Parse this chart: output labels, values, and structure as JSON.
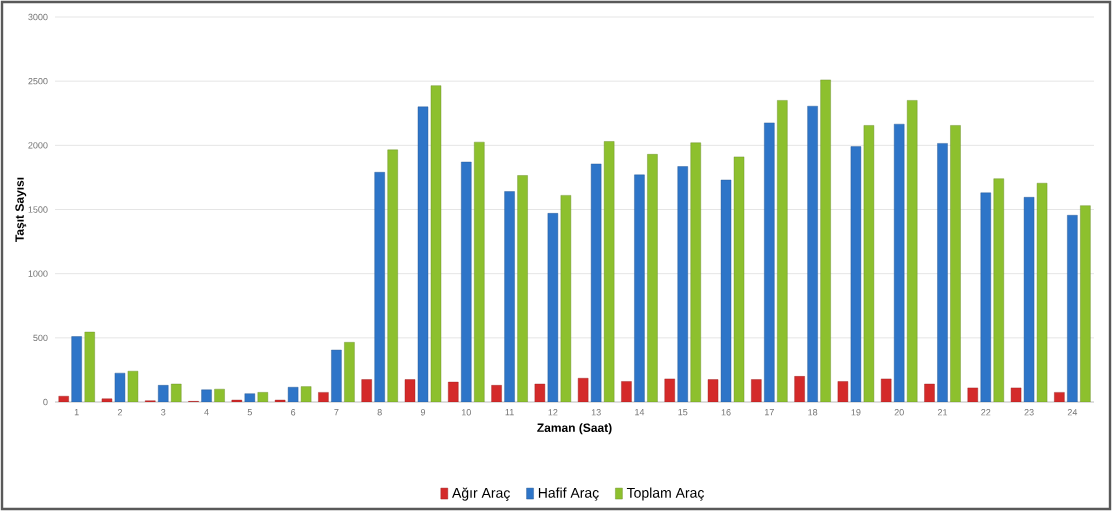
{
  "chart_data": {
    "type": "bar",
    "xlabel": "Zaman (Saat)",
    "ylabel": "Taşıt Sayısı",
    "categories": [
      "1",
      "2",
      "3",
      "4",
      "5",
      "6",
      "7",
      "8",
      "9",
      "10",
      "11",
      "12",
      "13",
      "14",
      "15",
      "16",
      "17",
      "18",
      "19",
      "20",
      "21",
      "22",
      "23",
      "24"
    ],
    "series": [
      {
        "name": "Ağır Araç",
        "color": "#d42a2a",
        "values": [
          45,
          25,
          10,
          5,
          15,
          15,
          75,
          175,
          175,
          155,
          130,
          140,
          185,
          160,
          180,
          175,
          175,
          200,
          160,
          180,
          140,
          110,
          110,
          75
        ]
      },
      {
        "name": "Hafif Araç",
        "color": "#2e75c8",
        "values": [
          510,
          225,
          130,
          95,
          65,
          115,
          405,
          1790,
          2300,
          1870,
          1640,
          1470,
          1855,
          1770,
          1835,
          1730,
          2175,
          2305,
          1990,
          2165,
          2015,
          1630,
          1595,
          1455
        ]
      },
      {
        "name": "Toplam Araç",
        "color": "#8dc02e",
        "values": [
          545,
          240,
          140,
          100,
          75,
          120,
          465,
          1965,
          2465,
          2025,
          1765,
          1610,
          2030,
          1930,
          2020,
          1910,
          2350,
          2510,
          2155,
          2350,
          2155,
          1740,
          1705,
          1530
        ]
      }
    ],
    "ylim": [
      0,
      3000
    ],
    "yticks": [
      0,
      500,
      1000,
      1500,
      2000,
      2500,
      3000
    ],
    "grid": "y",
    "legend": "bottom"
  }
}
